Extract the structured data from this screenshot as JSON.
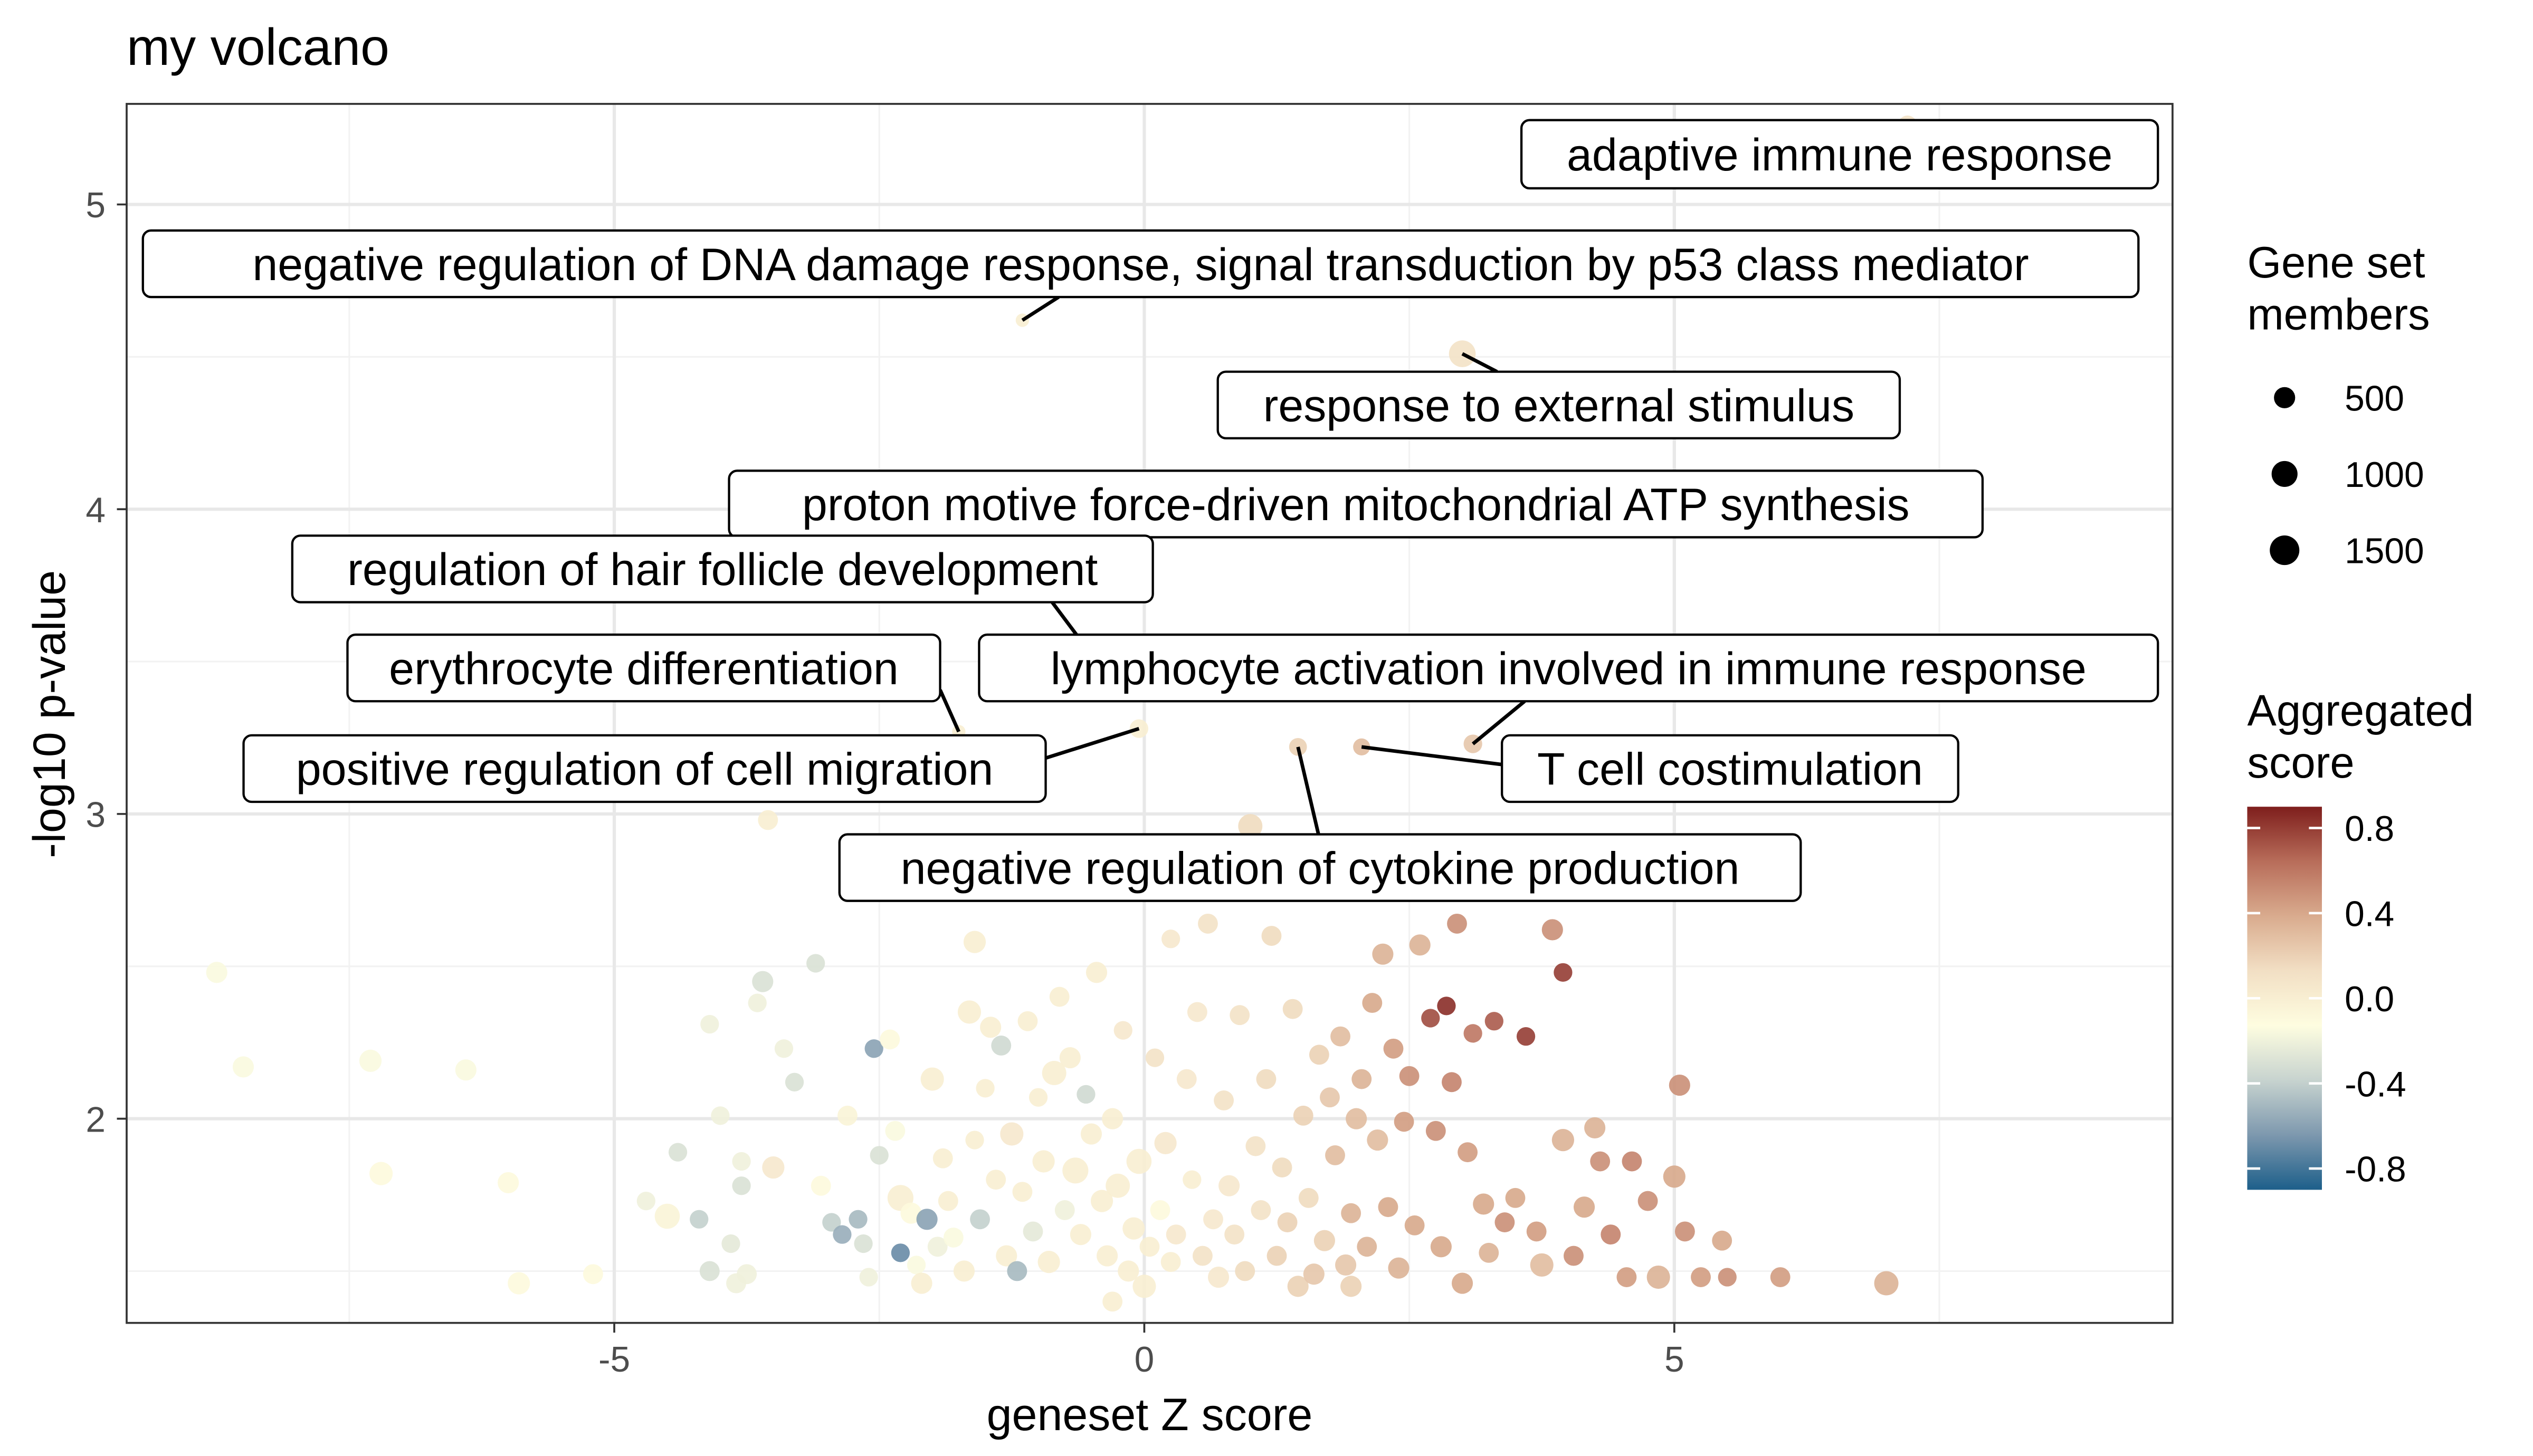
{
  "chart_data": {
    "type": "scatter",
    "title": "my volcano",
    "xlabel": "geneset Z score",
    "ylabel": "-log10 p-value",
    "xlim": [
      -9.6,
      9.7
    ],
    "ylim": [
      1.33,
      5.33
    ],
    "x_ticks": [
      -5,
      0,
      5
    ],
    "x_tick_labels": [
      "-5",
      "0",
      "5"
    ],
    "y_ticks": [
      2,
      3,
      4,
      5
    ],
    "y_tick_labels": [
      "2",
      "3",
      "4",
      "5"
    ],
    "grid": true,
    "legend_placement": "right",
    "size_legend": {
      "title": "Gene set members",
      "title_lines": [
        "Gene set",
        "members"
      ],
      "values": [
        500,
        1000,
        1500
      ],
      "labels": [
        "500",
        "1000",
        "1500"
      ]
    },
    "color_legend": {
      "title": "Aggregated score",
      "title_lines": [
        "Aggregated",
        "score"
      ],
      "ticks": [
        0.8,
        0.4,
        0.0,
        -0.4,
        -0.8
      ],
      "tick_labels": [
        "0.8",
        "0.4",
        "0.0",
        "-0.4",
        "-0.8"
      ],
      "range": [
        -0.9,
        0.9
      ],
      "gradient": [
        "#1d5f8a",
        "#7d98ae",
        "#c7d3cf",
        "#fefde0",
        "#f2dfc4",
        "#d9ab8e",
        "#b86d5a",
        "#7e1e1c"
      ]
    },
    "annotated_points": [
      {
        "name": "adaptive immune response",
        "x": 7.2,
        "y": 5.26,
        "members": 350,
        "score": 0.1
      },
      {
        "name": "negative regulation of DNA damage response, signal transduction by p53 class mediator",
        "x": -1.15,
        "y": 4.62,
        "members": 50,
        "score": 0.0
      },
      {
        "name": "response to external stimulus",
        "x": 3.0,
        "y": 4.51,
        "members": 1100,
        "score": 0.1
      },
      {
        "name": "proton motive force-driven mitochondrial ATP synthesis",
        "x": -2.6,
        "y": 3.9,
        "members": 50,
        "score": 0.0
      },
      {
        "name": "regulation of hair follicle development",
        "x": -0.45,
        "y": 3.5,
        "members": 50,
        "score": 0.0
      },
      {
        "name": "erythrocyte differentiation",
        "x": -1.75,
        "y": 3.27,
        "members": 50,
        "score": 0.0
      },
      {
        "name": "lymphocyte activation involved in immune response",
        "x": 3.1,
        "y": 3.23,
        "members": 300,
        "score": 0.25
      },
      {
        "name": "positive regulation of cell migration",
        "x": -0.05,
        "y": 3.28,
        "members": 300,
        "score": 0.0
      },
      {
        "name": "T cell costimulation",
        "x": 2.05,
        "y": 3.22,
        "members": 200,
        "score": 0.3
      },
      {
        "name": "negative regulation of cytokine production",
        "x": 1.45,
        "y": 3.22,
        "members": 250,
        "score": 0.2
      }
    ],
    "points": [
      [
        -8.75,
        2.48,
        500,
        -0.15
      ],
      [
        -8.5,
        2.17,
        500,
        -0.15
      ],
      [
        -7.3,
        2.19,
        600,
        -0.15
      ],
      [
        -7.2,
        1.82,
        700,
        -0.1
      ],
      [
        -6.4,
        2.16,
        500,
        -0.15
      ],
      [
        -6.0,
        1.79,
        500,
        -0.1
      ],
      [
        -5.9,
        1.46,
        600,
        -0.1
      ],
      [
        -5.2,
        1.49,
        400,
        -0.1
      ],
      [
        -4.7,
        1.73,
        300,
        -0.2
      ],
      [
        -4.5,
        1.68,
        900,
        -0.05
      ],
      [
        -4.4,
        1.89,
        300,
        -0.3
      ],
      [
        -4.2,
        1.67,
        300,
        -0.4
      ],
      [
        -4.1,
        1.5,
        400,
        -0.3
      ],
      [
        -4.0,
        2.01,
        300,
        -0.2
      ],
      [
        -3.9,
        1.59,
        300,
        -0.25
      ],
      [
        -3.85,
        1.46,
        400,
        -0.2
      ],
      [
        -3.8,
        1.86,
        300,
        -0.2
      ],
      [
        -3.75,
        1.49,
        400,
        -0.2
      ],
      [
        -3.8,
        1.78,
        300,
        -0.3
      ],
      [
        -4.1,
        2.31,
        300,
        -0.2
      ],
      [
        -3.6,
        2.45,
        500,
        -0.3
      ],
      [
        -3.65,
        2.38,
        300,
        -0.2
      ],
      [
        -3.4,
        2.23,
        300,
        -0.2
      ],
      [
        -3.3,
        2.12,
        300,
        -0.3
      ],
      [
        -3.5,
        1.84,
        600,
        0.05
      ],
      [
        -3.55,
        2.98,
        400,
        0.0
      ],
      [
        -3.1,
        2.51,
        300,
        -0.3
      ],
      [
        -3.05,
        1.78,
        400,
        -0.1
      ],
      [
        -2.95,
        1.66,
        300,
        -0.4
      ],
      [
        -2.85,
        1.62,
        300,
        -0.55
      ],
      [
        -2.8,
        2.01,
        400,
        -0.05
      ],
      [
        -2.7,
        1.67,
        300,
        -0.5
      ],
      [
        -2.65,
        1.59,
        300,
        -0.3
      ],
      [
        -2.6,
        1.48,
        300,
        -0.2
      ],
      [
        -2.55,
        2.23,
        300,
        -0.6
      ],
      [
        -2.5,
        1.88,
        300,
        -0.3
      ],
      [
        -2.4,
        2.26,
        400,
        -0.1
      ],
      [
        -2.35,
        1.96,
        400,
        -0.15
      ],
      [
        -2.3,
        1.74,
        1000,
        0.0
      ],
      [
        -2.3,
        1.56,
        300,
        -0.7
      ],
      [
        -2.2,
        1.69,
        500,
        -0.1
      ],
      [
        -2.15,
        1.52,
        300,
        -0.15
      ],
      [
        -2.1,
        1.46,
        500,
        0.0
      ],
      [
        -2.05,
        1.67,
        500,
        -0.6
      ],
      [
        -2.0,
        2.13,
        700,
        0.0
      ],
      [
        -1.95,
        1.58,
        400,
        -0.2
      ],
      [
        -1.9,
        1.87,
        400,
        0.0
      ],
      [
        -1.85,
        1.73,
        400,
        0.0
      ],
      [
        -1.8,
        1.61,
        400,
        -0.15
      ],
      [
        -1.7,
        1.5,
        500,
        0.0
      ],
      [
        -1.65,
        2.35,
        700,
        0.0
      ],
      [
        -1.6,
        1.93,
        300,
        0.0
      ],
      [
        -1.6,
        2.58,
        600,
        0.0
      ],
      [
        -1.55,
        1.67,
        400,
        -0.4
      ],
      [
        -1.5,
        2.1,
        300,
        0.0
      ],
      [
        -1.45,
        2.3,
        500,
        0.0
      ],
      [
        -1.4,
        1.8,
        400,
        0.0
      ],
      [
        -1.35,
        2.24,
        400,
        -0.35
      ],
      [
        -1.3,
        1.55,
        500,
        0.0
      ],
      [
        -1.25,
        1.95,
        700,
        0.05
      ],
      [
        -1.2,
        1.5,
        400,
        -0.5
      ],
      [
        -1.15,
        1.76,
        400,
        0.0
      ],
      [
        -1.1,
        2.32,
        400,
        0.0
      ],
      [
        -1.05,
        1.63,
        400,
        -0.25
      ],
      [
        -1.0,
        2.07,
        300,
        0.0
      ],
      [
        -0.95,
        1.86,
        600,
        0.0
      ],
      [
        -0.9,
        1.53,
        600,
        0.0
      ],
      [
        -0.85,
        2.15,
        800,
        0.0
      ],
      [
        -0.8,
        2.4,
        400,
        0.0
      ],
      [
        -0.75,
        1.7,
        400,
        -0.2
      ],
      [
        -0.7,
        2.2,
        500,
        0.0
      ],
      [
        -0.65,
        1.83,
        1000,
        0.0
      ],
      [
        -0.6,
        1.62,
        500,
        0.0
      ],
      [
        -0.55,
        2.08,
        300,
        -0.35
      ],
      [
        -0.5,
        1.95,
        500,
        0.0
      ],
      [
        -0.45,
        2.48,
        500,
        0.0
      ],
      [
        -0.4,
        1.73,
        600,
        0.0
      ],
      [
        -0.35,
        1.55,
        500,
        0.0
      ],
      [
        -0.3,
        2.0,
        500,
        0.0
      ],
      [
        -0.25,
        1.78,
        800,
        0.0
      ],
      [
        -0.2,
        2.29,
        300,
        0.05
      ],
      [
        -0.15,
        1.5,
        500,
        0.0
      ],
      [
        -0.1,
        1.64,
        600,
        0.0
      ],
      [
        -0.05,
        1.86,
        900,
        0.0
      ],
      [
        0.0,
        1.45,
        700,
        0.0
      ],
      [
        0.05,
        1.58,
        400,
        0.0
      ],
      [
        0.1,
        2.2,
        300,
        0.1
      ],
      [
        0.15,
        1.7,
        400,
        -0.1
      ],
      [
        0.2,
        1.92,
        600,
        0.05
      ],
      [
        0.25,
        1.53,
        400,
        0.0
      ],
      [
        0.3,
        1.62,
        400,
        0.05
      ],
      [
        0.4,
        2.13,
        400,
        0.05
      ],
      [
        0.45,
        1.8,
        300,
        0.0
      ],
      [
        0.5,
        2.35,
        400,
        0.05
      ],
      [
        0.55,
        1.55,
        400,
        0.1
      ],
      [
        0.6,
        2.64,
        400,
        0.1
      ],
      [
        0.65,
        1.67,
        400,
        0.05
      ],
      [
        0.7,
        1.48,
        500,
        0.05
      ],
      [
        0.75,
        2.06,
        400,
        0.1
      ],
      [
        0.8,
        1.78,
        500,
        0.05
      ],
      [
        0.85,
        1.62,
        400,
        0.1
      ],
      [
        0.9,
        2.34,
        400,
        0.1
      ],
      [
        0.95,
        1.5,
        400,
        0.15
      ],
      [
        1.0,
        2.96,
        800,
        0.15
      ],
      [
        1.05,
        1.91,
        400,
        0.1
      ],
      [
        1.1,
        1.7,
        400,
        0.1
      ],
      [
        1.15,
        2.13,
        400,
        0.15
      ],
      [
        1.2,
        2.6,
        400,
        0.15
      ],
      [
        1.25,
        1.55,
        400,
        0.2
      ],
      [
        1.3,
        1.84,
        400,
        0.15
      ],
      [
        1.35,
        1.66,
        400,
        0.2
      ],
      [
        1.4,
        2.36,
        400,
        0.15
      ],
      [
        1.45,
        1.45,
        500,
        0.2
      ],
      [
        1.5,
        2.01,
        400,
        0.2
      ],
      [
        1.55,
        1.74,
        400,
        0.15
      ],
      [
        1.6,
        1.49,
        500,
        0.25
      ],
      [
        1.65,
        2.21,
        400,
        0.2
      ],
      [
        1.7,
        1.6,
        500,
        0.2
      ],
      [
        1.75,
        2.07,
        400,
        0.25
      ],
      [
        1.8,
        1.88,
        400,
        0.3
      ],
      [
        1.85,
        2.27,
        400,
        0.3
      ],
      [
        1.9,
        1.52,
        500,
        0.25
      ],
      [
        1.95,
        1.69,
        400,
        0.35
      ],
      [
        2.0,
        2.0,
        500,
        0.3
      ],
      [
        2.05,
        2.13,
        400,
        0.35
      ],
      [
        2.1,
        1.58,
        400,
        0.35
      ],
      [
        2.15,
        2.38,
        400,
        0.4
      ],
      [
        2.2,
        1.93,
        500,
        0.3
      ],
      [
        2.25,
        2.54,
        500,
        0.35
      ],
      [
        2.3,
        1.71,
        400,
        0.4
      ],
      [
        2.35,
        2.23,
        400,
        0.45
      ],
      [
        2.4,
        1.51,
        500,
        0.35
      ],
      [
        2.45,
        1.99,
        400,
        0.45
      ],
      [
        2.5,
        2.14,
        400,
        0.5
      ],
      [
        2.55,
        1.65,
        400,
        0.4
      ],
      [
        2.6,
        2.57,
        500,
        0.35
      ],
      [
        2.7,
        2.33,
        300,
        0.75
      ],
      [
        2.75,
        1.96,
        400,
        0.5
      ],
      [
        2.8,
        1.58,
        500,
        0.4
      ],
      [
        2.85,
        2.37,
        300,
        0.85
      ],
      [
        2.9,
        2.12,
        400,
        0.55
      ],
      [
        2.95,
        2.64,
        400,
        0.5
      ],
      [
        3.05,
        1.89,
        400,
        0.45
      ],
      [
        3.1,
        2.28,
        300,
        0.6
      ],
      [
        3.2,
        1.72,
        500,
        0.4
      ],
      [
        3.25,
        1.56,
        400,
        0.35
      ],
      [
        3.3,
        2.32,
        300,
        0.7
      ],
      [
        3.4,
        1.66,
        400,
        0.5
      ],
      [
        3.5,
        1.74,
        400,
        0.4
      ],
      [
        3.6,
        2.27,
        300,
        0.8
      ],
      [
        3.7,
        1.63,
        400,
        0.45
      ],
      [
        3.75,
        1.52,
        700,
        0.3
      ],
      [
        3.85,
        2.62,
        500,
        0.5
      ],
      [
        3.95,
        2.48,
        300,
        0.8
      ],
      [
        3.95,
        1.93,
        600,
        0.35
      ],
      [
        4.05,
        1.55,
        400,
        0.5
      ],
      [
        4.15,
        1.71,
        500,
        0.4
      ],
      [
        4.3,
        1.86,
        400,
        0.5
      ],
      [
        4.4,
        1.62,
        400,
        0.55
      ],
      [
        4.55,
        1.48,
        400,
        0.45
      ],
      [
        4.6,
        1.86,
        400,
        0.55
      ],
      [
        4.75,
        1.73,
        400,
        0.5
      ],
      [
        4.85,
        1.48,
        700,
        0.35
      ],
      [
        5.0,
        1.81,
        600,
        0.4
      ],
      [
        5.05,
        2.11,
        500,
        0.5
      ],
      [
        5.1,
        1.63,
        400,
        0.5
      ],
      [
        5.25,
        1.48,
        400,
        0.45
      ],
      [
        5.45,
        1.6,
        400,
        0.4
      ],
      [
        5.5,
        1.48,
        300,
        0.5
      ],
      [
        6.0,
        1.48,
        400,
        0.45
      ],
      [
        7.0,
        1.46,
        800,
        0.35
      ],
      [
        4.25,
        1.97,
        500,
        0.35
      ],
      [
        0.25,
        2.59,
        300,
        0.05
      ],
      [
        -0.3,
        1.4,
        400,
        0.0
      ],
      [
        1.95,
        1.45,
        500,
        0.2
      ],
      [
        3.0,
        1.46,
        500,
        0.4
      ]
    ]
  }
}
